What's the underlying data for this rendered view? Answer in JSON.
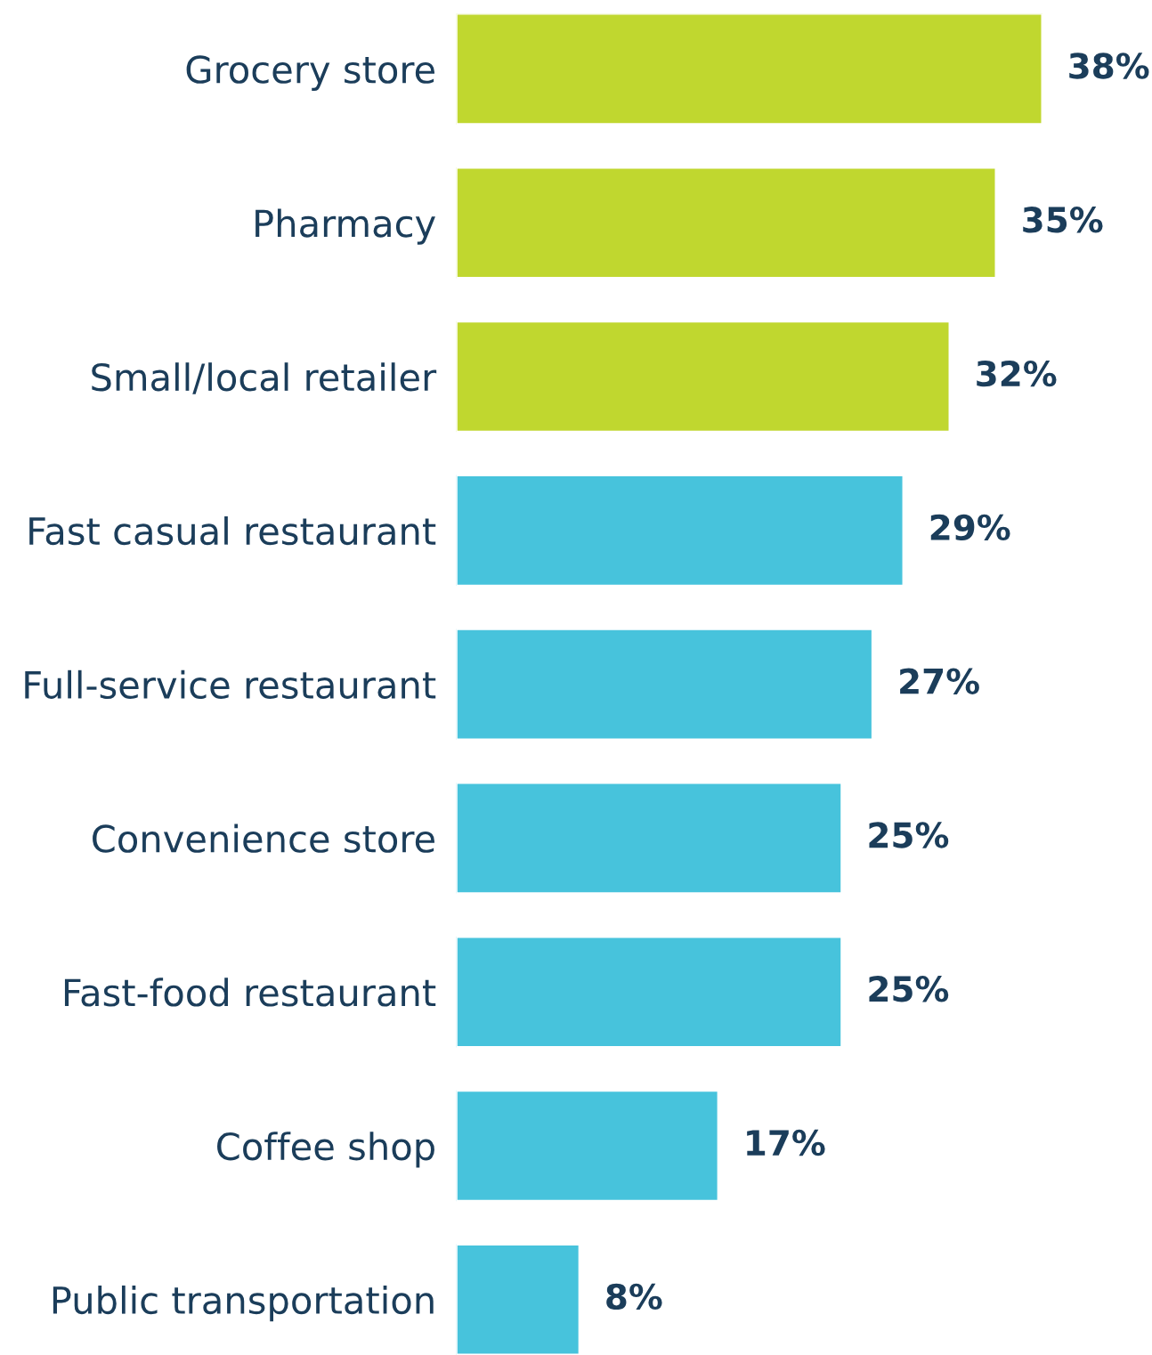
{
  "chart_data": {
    "type": "bar",
    "orientation": "horizontal",
    "categories": [
      "Grocery store",
      "Pharmacy",
      "Small/local retailer",
      "Fast casual restaurant",
      "Full-service restaurant",
      "Convenience store",
      "Fast-food restaurant",
      "Coffee shop",
      "Public transportation"
    ],
    "values": [
      38,
      35,
      32,
      29,
      27,
      25,
      25,
      17,
      8
    ],
    "value_labels": [
      "38%",
      "35%",
      "32%",
      "29%",
      "27%",
      "25%",
      "25%",
      "17%",
      "8%"
    ],
    "colors": [
      "#c0d72f",
      "#c0d72f",
      "#c0d72f",
      "#47c3dc",
      "#47c3dc",
      "#47c3dc",
      "#47c3dc",
      "#47c3dc",
      "#47c3dc"
    ],
    "grid": false,
    "legend": false
  }
}
